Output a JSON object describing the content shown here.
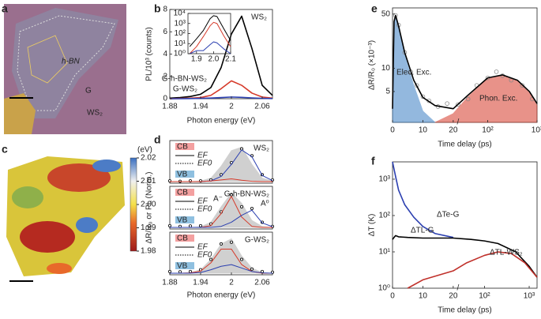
{
  "panel_labels": [
    "a",
    "b",
    "c",
    "d",
    "e",
    "f"
  ],
  "image_a": {
    "labels": [
      "h-BN",
      "G",
      "WS₂"
    ]
  },
  "chart_data": [
    {
      "type": "line",
      "xlabel": "Photon energy (eV)",
      "ylabel": "PL/10³ (counts)",
      "x": [
        1.88,
        1.9,
        1.92,
        1.94,
        1.96,
        1.98,
        2.0,
        2.02,
        2.04,
        2.06,
        2.08
      ],
      "xlim": [
        1.88,
        2.08
      ],
      "xticks": [
        1.88,
        1.94,
        2,
        2.06
      ],
      "ylim": [
        0,
        8
      ],
      "yticks": [
        0,
        2,
        4,
        6,
        8
      ],
      "series": [
        {
          "name": "WS₂",
          "color": "#000000",
          "values": [
            0.05,
            0.1,
            0.2,
            0.4,
            1.0,
            2.8,
            5.8,
            7.4,
            4.5,
            1.2,
            0.3
          ]
        },
        {
          "name": "G-h-BN-WS₂",
          "color": "#d63a2a",
          "values": [
            0,
            0.02,
            0.05,
            0.1,
            0.3,
            0.9,
            1.6,
            1.2,
            0.5,
            0.15,
            0.05
          ]
        },
        {
          "name": "G-WS₂",
          "color": "#2b3fb0",
          "values": [
            0,
            0,
            0.01,
            0.03,
            0.06,
            0.1,
            0.15,
            0.12,
            0.07,
            0.03,
            0.01
          ]
        }
      ]
    },
    {
      "type": "line",
      "ylog": true,
      "x": [
        1.86,
        1.9,
        1.94,
        1.98,
        2.0,
        2.02,
        2.06,
        2.1
      ],
      "xlim": [
        1.85,
        2.1
      ],
      "xticks": [
        1.9,
        {
          "value": 2.0,
          "label": "2.0"
        },
        {
          "value": 2.1,
          "label": "2.1"
        }
      ],
      "ylim": [
        1,
        10000
      ],
      "yticks": [
        {
          "value": 1,
          "label": "10⁰"
        },
        {
          "value": 10,
          "label": "10¹"
        },
        {
          "value": 100,
          "label": "10²"
        },
        {
          "value": 1000,
          "label": "10³"
        },
        {
          "value": 10000,
          "label": "10⁴"
        }
      ],
      "series": [
        {
          "color": "#000000",
          "values": [
            5,
            30,
            200,
            3000,
            6000,
            5000,
            300,
            20
          ]
        },
        {
          "color": "#d63a2a",
          "values": [
            1,
            5,
            50,
            600,
            1300,
            1000,
            60,
            5
          ]
        },
        {
          "color": "#2b3fb0",
          "values": [
            1,
            2,
            2,
            8,
            15,
            12,
            3,
            1
          ]
        }
      ]
    },
    {
      "type": "colorbar",
      "label": "(eV)",
      "ticks": [
        1.98,
        1.99,
        {
          "value": 2.0,
          "label": "2.00"
        },
        2.01,
        2.02
      ],
      "lim": [
        1.98,
        2.02
      ]
    },
    {
      "type": "line",
      "xlabel": "Photon energy (eV)",
      "ylabel": "ΔR/R₀ or PL (Norm.)",
      "x": [
        1.88,
        1.9,
        1.92,
        1.94,
        1.96,
        1.98,
        2.0,
        2.02,
        2.04,
        2.06,
        2.08
      ],
      "xlim": [
        1.88,
        2.08
      ],
      "xticks": [
        1.88,
        1.94,
        2,
        2.06
      ],
      "ylim": [
        0,
        1.1
      ],
      "band_labels": [
        "CB",
        "EF",
        "EF0",
        "VB"
      ],
      "subplots": [
        {
          "label": "WS₂",
          "series": [
            {
              "mark": "area",
              "color": "#aaaaaa",
              "values": [
                0,
                0,
                0,
                0.02,
                0.1,
                0.45,
                0.9,
                1.0,
                0.5,
                0.1,
                0.02
              ]
            },
            {
              "mark": "dots",
              "color": "#000000",
              "values": [
                0.02,
                0.01,
                0.02,
                0.02,
                0.05,
                0.2,
                0.55,
                0.95,
                0.75,
                0.2,
                0.05
              ]
            },
            {
              "color": "#2b3fb0",
              "values": [
                0,
                0,
                0,
                0,
                0.02,
                0.15,
                0.5,
                0.92,
                0.72,
                0.18,
                0.03
              ]
            },
            {
              "color": "#d63a2a",
              "values": [
                0,
                0,
                0,
                0,
                0.02,
                0.05,
                0.08,
                0.04,
                0.01,
                0,
                0
              ]
            }
          ]
        },
        {
          "label": "G-h-BN-WS₂",
          "annotations": [
            "A⁻",
            "A⁰"
          ],
          "series": [
            {
              "mark": "area",
              "color": "#aaaaaa",
              "values": [
                0,
                0,
                0,
                0.02,
                0.15,
                0.6,
                1.0,
                0.7,
                0.2,
                0.03,
                0
              ]
            },
            {
              "mark": "dots",
              "color": "#000000",
              "values": [
                0.05,
                0.03,
                0.04,
                0.05,
                0.1,
                0.45,
                0.95,
                0.6,
                0.55,
                0.15,
                0.03
              ]
            },
            {
              "color": "#d63a2a",
              "values": [
                0,
                0,
                0,
                0,
                0.05,
                0.4,
                0.9,
                0.3,
                0.03,
                0,
                0
              ]
            },
            {
              "color": "#2b3fb0",
              "values": [
                0,
                0,
                0,
                0,
                0,
                0.03,
                0.15,
                0.35,
                0.5,
                0.13,
                0.02
              ]
            }
          ]
        },
        {
          "label": "G-WS₂",
          "series": [
            {
              "mark": "area",
              "color": "#aaaaaa",
              "values": [
                0,
                0,
                0.02,
                0.1,
                0.4,
                0.85,
                1.0,
                0.5,
                0.15,
                0.02,
                0
              ]
            },
            {
              "mark": "dots",
              "color": "#000000",
              "values": [
                0.05,
                0.04,
                0.05,
                0.1,
                0.4,
                0.85,
                0.9,
                0.4,
                0.12,
                0.05,
                0.03
              ]
            },
            {
              "color": "#d63a2a",
              "values": [
                0,
                0,
                0.01,
                0.06,
                0.3,
                0.7,
                0.7,
                0.25,
                0.05,
                0,
                0
              ]
            },
            {
              "color": "#2b3fb0",
              "values": [
                0,
                0,
                0,
                0.02,
                0.1,
                0.2,
                0.25,
                0.15,
                0.05,
                0.01,
                0
              ]
            }
          ]
        }
      ]
    },
    {
      "type": "line",
      "xlabel": "Time delay (ps)",
      "ylabel": "ΔR/R₀ (×10⁻³)",
      "ylog": true,
      "xbreak": 20,
      "xlim": [
        0,
        1000
      ],
      "xticks": [
        0,
        10,
        20,
        {
          "value": 100,
          "label": "10²"
        },
        {
          "value": 1000,
          "label": "10³"
        }
      ],
      "ylim": [
        2,
        60
      ],
      "yticks": [
        5,
        10,
        50
      ],
      "series": [
        {
          "name": "Elec. Exc.",
          "mark": "area",
          "color": "#3b7fc4",
          "x": [
            0,
            0.5,
            1,
            2,
            4,
            7,
            10,
            14
          ],
          "values": [
            3,
            40,
            48,
            35,
            15,
            6,
            2.8,
            2
          ]
        },
        {
          "name": "Phon. Exc.",
          "mark": "area",
          "color": "#d63a2a",
          "x": [
            14,
            20,
            40,
            100,
            200,
            400,
            700,
            1000
          ],
          "values": [
            2,
            2.6,
            4.3,
            7.3,
            8,
            6.8,
            4.8,
            3.3
          ]
        },
        {
          "mark": "scatter",
          "color": "#888888",
          "x": [
            1,
            2,
            4,
            6,
            8,
            10,
            12,
            15,
            18,
            25,
            40,
            60,
            100,
            150,
            200,
            300,
            500,
            800
          ],
          "values": [
            48,
            36,
            16,
            9,
            6,
            4.3,
            3.8,
            3.2,
            3.5,
            3.4,
            4,
            6,
            7.5,
            9,
            8,
            7,
            6,
            4
          ]
        },
        {
          "color": "#000000",
          "x": [
            0,
            0.5,
            1,
            2,
            4,
            7,
            10,
            14,
            20,
            40,
            100,
            200,
            400,
            700,
            1000
          ],
          "values": [
            3,
            40,
            48,
            35,
            16,
            7,
            4.2,
            3.3,
            3.0,
            4.5,
            7.5,
            8.2,
            7,
            5,
            3.5
          ]
        }
      ]
    },
    {
      "type": "line",
      "xlabel": "Time delay (ps)",
      "ylabel": "ΔT (K)",
      "ylog": true,
      "xbreak": 20,
      "xlim": [
        0,
        1500
      ],
      "xticks": [
        0,
        10,
        20,
        {
          "value": 100,
          "label": "10²"
        },
        {
          "value": 1000,
          "label": "10³"
        }
      ],
      "ylim": [
        1,
        3000
      ],
      "yticks": [
        {
          "value": 1,
          "label": "10⁰"
        },
        {
          "value": 10,
          "label": "10¹"
        },
        {
          "value": 100,
          "label": "10²"
        },
        {
          "value": 1000,
          "label": "10³"
        }
      ],
      "series": [
        {
          "name": "ΔTe-G",
          "color": "#2b3fb0",
          "x": [
            0,
            1,
            2,
            4,
            7,
            10,
            14,
            20
          ],
          "values": [
            3000,
            1200,
            500,
            200,
            90,
            50,
            32,
            25
          ]
        },
        {
          "name": "ΔTL-G",
          "color": "#000000",
          "x": [
            0,
            0.5,
            1,
            2,
            5,
            10,
            20,
            50,
            100,
            200,
            500,
            1000,
            1500
          ],
          "values": [
            22,
            25,
            28,
            26,
            25,
            24,
            24,
            22,
            20,
            17,
            10,
            4,
            2
          ]
        },
        {
          "name": "ΔTL-WS₂",
          "color": "#c0302a",
          "x": [
            5,
            10,
            20,
            40,
            100,
            200,
            400,
            800,
            1500
          ],
          "values": [
            1,
            1.7,
            3,
            5,
            8,
            10,
            9,
            5,
            2
          ]
        }
      ]
    }
  ]
}
